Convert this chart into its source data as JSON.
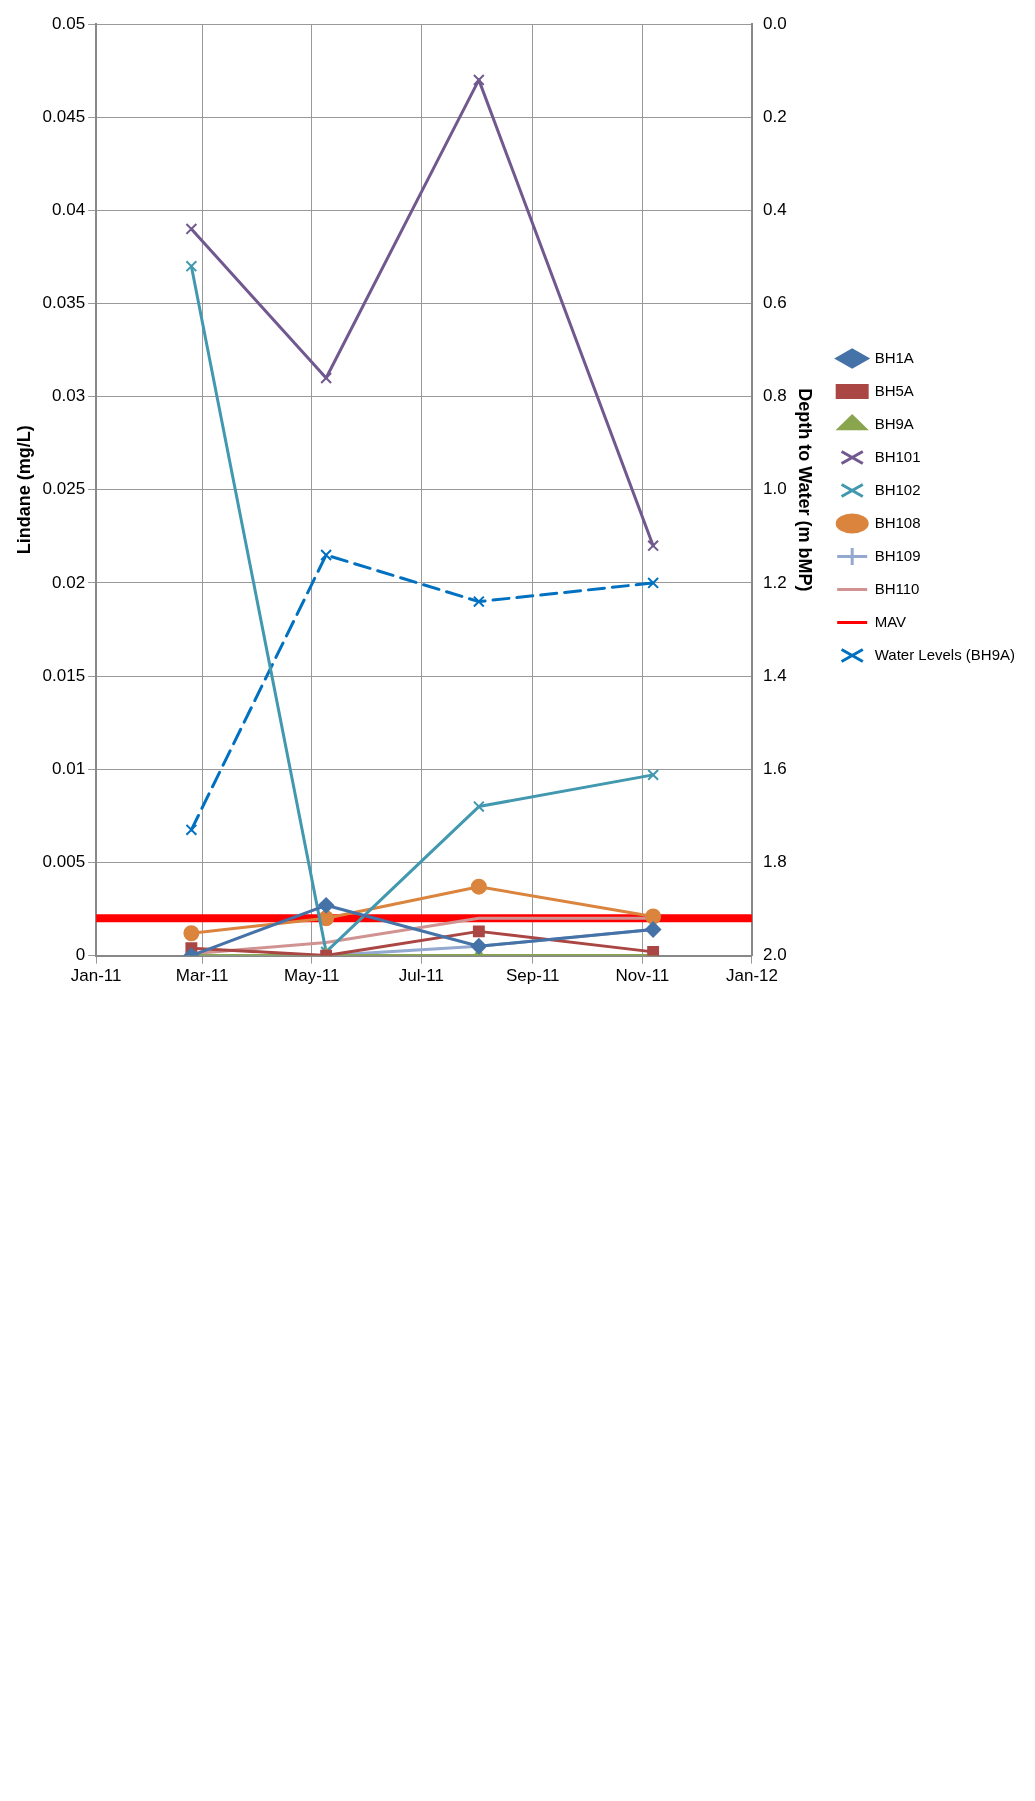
{
  "chart_data": {
    "type": "line",
    "xlabel": null,
    "ylabel": "Lindane (mg/L)",
    "y2label": "Depth to Water (m bMP)",
    "xlim": [
      "2011-01-01",
      "2012-01-01"
    ],
    "xticks": [
      {
        "value": "2011-01-01",
        "label": "Jan-11"
      },
      {
        "value": "2011-03-01",
        "label": "Mar-11"
      },
      {
        "value": "2011-05-01",
        "label": "May-11"
      },
      {
        "value": "2011-07-01",
        "label": "Jul-11"
      },
      {
        "value": "2011-09-01",
        "label": "Sep-11"
      },
      {
        "value": "2011-11-01",
        "label": "Nov-11"
      },
      {
        "value": "2012-01-01",
        "label": "Jan-12"
      }
    ],
    "ylim": [
      0,
      0.05
    ],
    "yticks": [
      0,
      0.005,
      0.01,
      0.015,
      0.02,
      0.025,
      0.03,
      0.035,
      0.04,
      0.045,
      0.05
    ],
    "y2lim": [
      2.0,
      0.0
    ],
    "y2ticks": [
      {
        "value": 0,
        "label": "0.0"
      },
      {
        "value": 0.2,
        "label": "0.2"
      },
      {
        "value": 0.4,
        "label": "0.4"
      },
      {
        "value": 0.6,
        "label": "0.6"
      },
      {
        "value": 0.8,
        "label": "0.8"
      },
      {
        "value": 1,
        "label": "1.0"
      },
      {
        "value": 1.2,
        "label": "1.2"
      },
      {
        "value": 1.4,
        "label": "1.4"
      },
      {
        "value": 1.6,
        "label": "1.6"
      },
      {
        "value": 1.8,
        "label": "1.8"
      },
      {
        "value": 2,
        "label": "2.0"
      }
    ],
    "grid": true,
    "legend": "right",
    "series": [
      {
        "name": "BH1A",
        "color": "#4572a7",
        "marker": "diamond",
        "x": [
          "2011-02-23",
          "2011-05-09",
          "2011-08-02",
          "2011-11-07"
        ],
        "values": [
          0,
          0.0027,
          0.0005,
          0.0014
        ]
      },
      {
        "name": "BH5A",
        "color": "#aa4643",
        "marker": "square",
        "x": [
          "2011-02-23",
          "2011-05-09",
          "2011-08-02",
          "2011-11-07"
        ],
        "values": [
          0.0004,
          0,
          0.0013,
          0.0002
        ]
      },
      {
        "name": "BH9A",
        "color": "#89a54e",
        "marker": "triangle",
        "x": [
          "2011-02-23",
          "2011-05-09",
          "2011-08-02",
          "2011-11-07"
        ],
        "values": [
          0,
          0,
          0,
          0
        ]
      },
      {
        "name": "BH101",
        "color": "#71588f",
        "marker": "cross",
        "x": [
          "2011-02-23",
          "2011-05-09",
          "2011-08-02",
          "2011-11-07"
        ],
        "values": [
          0.039,
          0.031,
          0.047,
          0.022
        ]
      },
      {
        "name": "BH102",
        "color": "#4198af",
        "marker": "cross",
        "x": [
          "2011-02-23",
          "2011-05-09",
          "2011-08-02",
          "2011-11-07"
        ],
        "values": [
          0.037,
          0.0002,
          0.008,
          0.0097
        ]
      },
      {
        "name": "BH108",
        "color": "#db843d",
        "marker": "circle",
        "x": [
          "2011-02-23",
          "2011-05-09",
          "2011-08-02",
          "2011-11-07"
        ],
        "values": [
          0.0012,
          0.002,
          0.0037,
          0.0021
        ]
      },
      {
        "name": "BH109",
        "color": "#93a9cf",
        "marker": "plus",
        "x": [
          "2011-02-23",
          "2011-05-09",
          "2011-08-02",
          "2011-11-07"
        ],
        "values": [
          0,
          0,
          0.0005,
          0.0014
        ]
      },
      {
        "name": "BH110",
        "color": "#d19392",
        "marker": "none",
        "x": [
          "2011-02-23",
          "2011-05-09",
          "2011-08-02",
          "2011-11-07"
        ],
        "values": [
          0.0001,
          0.0007,
          0.002,
          0.002
        ]
      },
      {
        "name": "MAV",
        "color": "#ff0000",
        "marker": "none",
        "x": [
          "2011-01-01",
          "2011-12-31"
        ],
        "values": [
          0.002,
          0.002
        ]
      },
      {
        "name": "Water Levels (BH9A)",
        "color": "#0070c0",
        "marker": "cross",
        "line_style": "dashed",
        "axis": "y2",
        "x": [
          "2011-02-23",
          "2011-05-09",
          "2011-08-02",
          "2011-11-07"
        ],
        "values": [
          1.73,
          1.14,
          1.24,
          1.2
        ]
      }
    ]
  }
}
